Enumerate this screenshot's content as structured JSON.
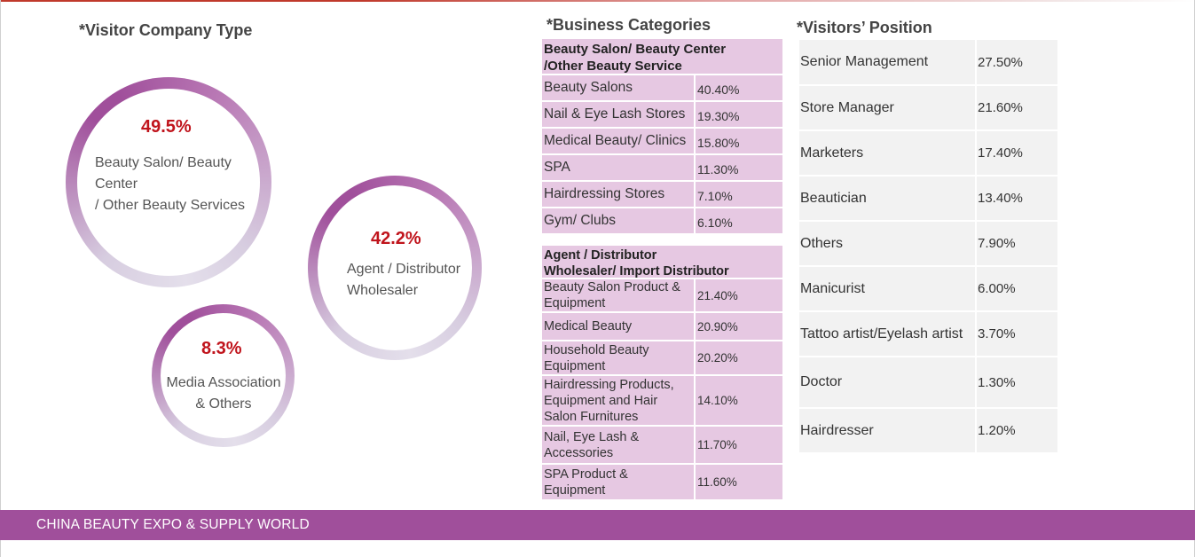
{
  "visitor_company_type": {
    "title": "*Visitor Company Type",
    "items": [
      {
        "percent": "49.5%",
        "label_lines": [
          "Beauty Salon/ Beauty",
          "Center",
          "/ Other Beauty Services"
        ]
      },
      {
        "percent": "42.2%",
        "label_lines": [
          "Agent / Distributor",
          "Wholesaler"
        ]
      },
      {
        "percent": "8.3%",
        "label_lines": [
          "Media Association",
          "& Others"
        ]
      }
    ]
  },
  "business_categories": {
    "title": "*Business Categories",
    "group1": {
      "header_lines": [
        "Beauty Salon/ Beauty Center",
        "/Other Beauty Service"
      ],
      "rows": [
        {
          "category": "Beauty Salons",
          "value": "40.40%"
        },
        {
          "category": "Nail & Eye Lash Stores",
          "value": "19.30%"
        },
        {
          "category": "Medical Beauty/ Clinics",
          "value": "15.80%"
        },
        {
          "category": "SPA",
          "value": "11.30%"
        },
        {
          "category": "Hairdressing Stores",
          "value": "7.10%"
        },
        {
          "category": "Gym/ Clubs",
          "value": "6.10%"
        }
      ]
    },
    "group2": {
      "header_lines": [
        "Agent / Distributor",
        "Wholesaler/ Import Distributor"
      ],
      "rows": [
        {
          "category_lines": [
            "Beauty Salon Product &",
            "Equipment"
          ],
          "value": "21.40%"
        },
        {
          "category_lines": [
            "Medical Beauty"
          ],
          "value": "20.90%"
        },
        {
          "category_lines": [
            "Household Beauty",
            "Equipment"
          ],
          "value": "20.20%"
        },
        {
          "category_lines": [
            "Hairdressing Products,",
            "Equipment and Hair",
            "Salon Furnitures"
          ],
          "value": "14.10%"
        },
        {
          "category_lines": [
            "Nail, Eye Lash &",
            "Accessories"
          ],
          "value": "11.70%"
        },
        {
          "category_lines": [
            "SPA Product &",
            "Equipment"
          ],
          "value": "11.60%"
        }
      ]
    }
  },
  "visitors_position": {
    "title": "*Visitors’ Position",
    "rows": [
      {
        "position": "Senior Management",
        "value": "27.50%"
      },
      {
        "position": "Store Manager",
        "value": "21.60%"
      },
      {
        "position": "Marketers",
        "value": "17.40%"
      },
      {
        "position": "Beautician",
        "value": "13.40%"
      },
      {
        "position": "Others",
        "value": "7.90%"
      },
      {
        "position": "Manicurist",
        "value": "6.00%"
      },
      {
        "position": "Tattoo artist/Eyelash artist",
        "value": "3.70%"
      },
      {
        "position": "Doctor",
        "value": "1.30%"
      },
      {
        "position": "Hairdresser",
        "value": "1.20%"
      }
    ]
  },
  "footer": {
    "text": "CHINA BEAUTY EXPO & SUPPLY  WORLD"
  },
  "colors": {
    "accent_purple": "#a04f9b",
    "table_pink": "#e6c8e2",
    "percent_red": "#c0141c",
    "table_grey": "#f2f2f2"
  }
}
